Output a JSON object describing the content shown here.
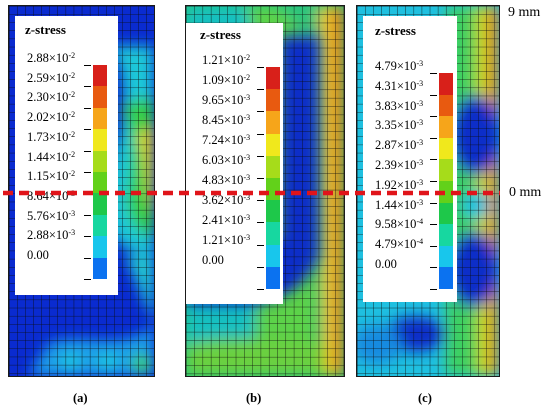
{
  "panels": [
    {
      "id": "a",
      "caption": "(a)",
      "legend_title": "z-stress",
      "ticks": [
        {
          "m": "2.88",
          "e": "-2"
        },
        {
          "m": "2.59",
          "e": "-2"
        },
        {
          "m": "2.30",
          "e": "-2"
        },
        {
          "m": "2.02",
          "e": "-2"
        },
        {
          "m": "1.73",
          "e": "-2"
        },
        {
          "m": "1.44",
          "e": "-2"
        },
        {
          "m": "1.15",
          "e": "-2"
        },
        {
          "m": "8.64",
          "e": "-3"
        },
        {
          "m": "5.76",
          "e": "-3"
        },
        {
          "m": "2.88",
          "e": "-3"
        },
        {
          "m": "0.00",
          "e": ""
        }
      ]
    },
    {
      "id": "b",
      "caption": "(b)",
      "legend_title": "z-stress",
      "ticks": [
        {
          "m": "1.21",
          "e": "-2"
        },
        {
          "m": "1.09",
          "e": "-2"
        },
        {
          "m": "9.65",
          "e": "-3"
        },
        {
          "m": "8.45",
          "e": "-3"
        },
        {
          "m": "7.24",
          "e": "-3"
        },
        {
          "m": "6.03",
          "e": "-3"
        },
        {
          "m": "4.83",
          "e": "-3"
        },
        {
          "m": "3.62",
          "e": "-3"
        },
        {
          "m": "2.41",
          "e": "-3"
        },
        {
          "m": "1.21",
          "e": "-3"
        },
        {
          "m": "0.00",
          "e": ""
        }
      ]
    },
    {
      "id": "c",
      "caption": "(c)",
      "legend_title": "z-stress",
      "ticks": [
        {
          "m": "4.79",
          "e": "-3"
        },
        {
          "m": "4.31",
          "e": "-3"
        },
        {
          "m": "3.83",
          "e": "-3"
        },
        {
          "m": "3.35",
          "e": "-3"
        },
        {
          "m": "2.87",
          "e": "-3"
        },
        {
          "m": "2.39",
          "e": "-3"
        },
        {
          "m": "1.92",
          "e": "-3"
        },
        {
          "m": "1.44",
          "e": "-3"
        },
        {
          "m": "9.58",
          "e": "-4"
        },
        {
          "m": "4.79",
          "e": "-4"
        },
        {
          "m": "0.00",
          "e": ""
        }
      ]
    }
  ],
  "colormap": [
    "#0015c8",
    "#0b72f0",
    "#18c6ec",
    "#17d7a0",
    "#1ec84a",
    "#62d11a",
    "#a6dc1a",
    "#f0e81c",
    "#f6a51a",
    "#e85a10",
    "#d8201a"
  ],
  "axis_labels": {
    "top": "9 mm",
    "middle": "0 mm"
  },
  "times_sign": "×",
  "section_line_color": "#e0141a"
}
